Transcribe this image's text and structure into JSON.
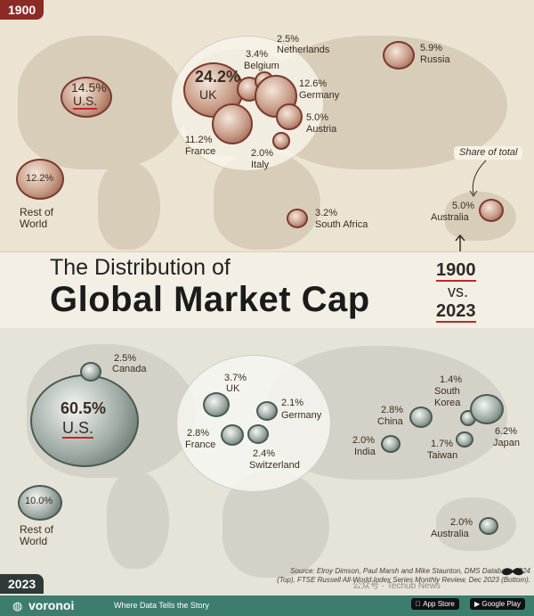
{
  "header": {
    "year_top": "1900",
    "year_bottom": "2023",
    "title_line1": "The Distribution of",
    "title_line2": "Global Market Cap",
    "year1": "1900",
    "vs": "vs.",
    "year2": "2023",
    "share_note": "Share of total"
  },
  "chart_data": [
    {
      "type": "bubble-map",
      "year": "1900",
      "points": [
        {
          "country": "U.S.",
          "value": 14.5,
          "label": "14.5%"
        },
        {
          "country": "Rest of World",
          "value": 12.2,
          "label": "12.2%"
        },
        {
          "country": "UK",
          "value": 24.2,
          "label": "24.2%"
        },
        {
          "country": "Belgium",
          "value": 3.4,
          "label": "3.4%"
        },
        {
          "country": "Netherlands",
          "value": 2.5,
          "label": "2.5%"
        },
        {
          "country": "Germany",
          "value": 12.6,
          "label": "12.6%"
        },
        {
          "country": "Austria",
          "value": 5.0,
          "label": "5.0%"
        },
        {
          "country": "France",
          "value": 11.2,
          "label": "11.2%"
        },
        {
          "country": "Italy",
          "value": 2.0,
          "label": "2.0%"
        },
        {
          "country": "Russia",
          "value": 5.9,
          "label": "5.9%"
        },
        {
          "country": "South Africa",
          "value": 3.2,
          "label": "3.2%"
        },
        {
          "country": "Australia",
          "value": 5.0,
          "label": "5.0%"
        }
      ]
    },
    {
      "type": "bubble-map",
      "year": "2023",
      "points": [
        {
          "country": "U.S.",
          "value": 60.5,
          "label": "60.5%"
        },
        {
          "country": "Canada",
          "value": 2.5,
          "label": "2.5%"
        },
        {
          "country": "Rest of World",
          "value": 10.0,
          "label": "10.0%"
        },
        {
          "country": "UK",
          "value": 3.7,
          "label": "3.7%"
        },
        {
          "country": "Germany",
          "value": 2.1,
          "label": "2.1%"
        },
        {
          "country": "France",
          "value": 2.8,
          "label": "2.8%"
        },
        {
          "country": "Switzerland",
          "value": 2.4,
          "label": "2.4%"
        },
        {
          "country": "China",
          "value": 2.8,
          "label": "2.8%"
        },
        {
          "country": "South Korea",
          "value": 1.4,
          "label": "1.4%"
        },
        {
          "country": "Japan",
          "value": 6.2,
          "label": "6.2%"
        },
        {
          "country": "India",
          "value": 2.0,
          "label": "2.0%"
        },
        {
          "country": "Taiwan",
          "value": 1.7,
          "label": "1.7%"
        },
        {
          "country": "Australia",
          "value": 2.0,
          "label": "2.0%"
        }
      ]
    }
  ],
  "source": {
    "line1": "Source: Elroy Dimson, Paul Marsh and Mike Staunton, DMS Database 2024",
    "line2": "(Top), FTSE Russell All-World Index Series Monthly Review, Dec 2023 (Bottom)."
  },
  "footer": {
    "brand": "voronoi",
    "tagline": "Where Data Tells the Story",
    "app_store": "App Store",
    "google_play": "Google Play",
    "watermark": "公众号 · Techub News"
  },
  "colors": {
    "accent_red": "#8c2b25",
    "footer_green": "#3c7d6e",
    "bubble_top": "#b98a76",
    "bubble_bottom": "#7f8c86"
  }
}
